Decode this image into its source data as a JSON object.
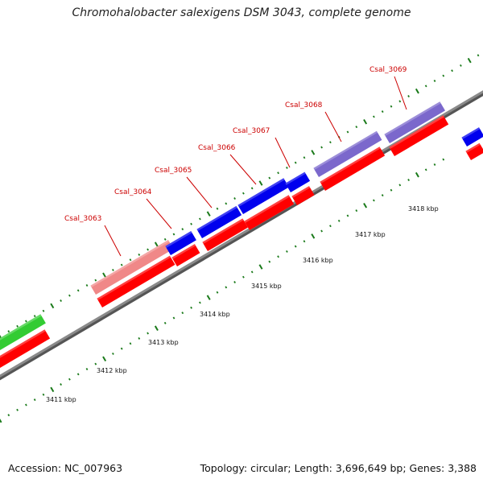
{
  "title": "Chromohalobacter salexigens DSM 3043, complete genome",
  "footer": {
    "accession": "Accession: NC_007963",
    "topology": "Topology: circular; Length: 3,696,649 bp; Genes: 3,388"
  },
  "colors": {
    "backbone": "#8a8a8a",
    "tick": "#1a7a1a",
    "label": "#cc0000",
    "leader": "#cc0000",
    "cds_forward": "#ff0000",
    "gene_blue": "#0000ee",
    "gene_pink": "#f08888",
    "gene_purple": "#7b68cc",
    "gene_green": "#33cc33"
  },
  "scale": {
    "unit": "kbp",
    "tick_labels": [
      "3411 kbp",
      "3412 kbp",
      "3413 kbp",
      "3414 kbp",
      "3415 kbp",
      "3416 kbp",
      "3417 kbp",
      "3418 kbp"
    ]
  },
  "gene_labels": [
    "Csal_3063",
    "Csal_3064",
    "Csal_3065",
    "Csal_3066",
    "Csal_3067",
    "Csal_3068",
    "Csal_3069"
  ]
}
